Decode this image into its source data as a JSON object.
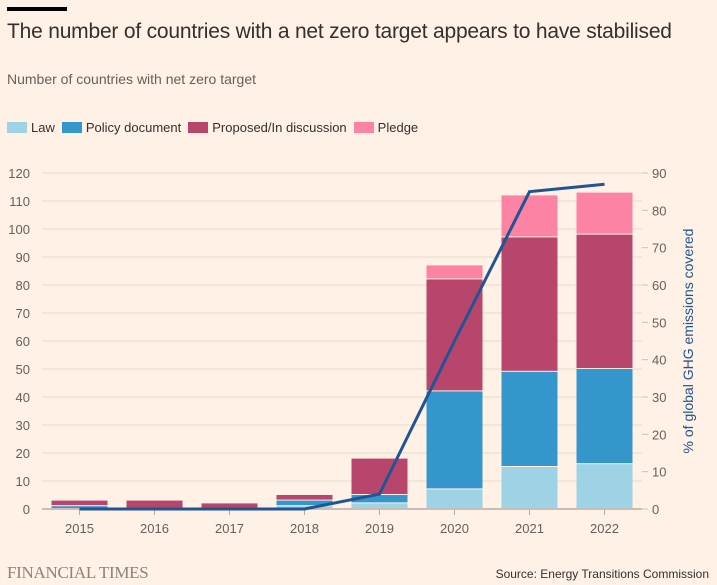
{
  "header": {
    "title": "The number of countries with a net zero target appears to have stabilised",
    "subtitle": "Number of countries with net zero target"
  },
  "footer": {
    "logo": "FINANCIAL TIMES",
    "source": "Source: Energy Transitions Commission"
  },
  "chart_data": {
    "type": "bar",
    "stacked": true,
    "title": "The number of countries with a net zero target appears to have stabilised",
    "subtitle": "Number of countries with net zero target",
    "categories": [
      "2015",
      "2016",
      "2017",
      "2018",
      "2019",
      "2020",
      "2021",
      "2022"
    ],
    "series": [
      {
        "name": "Law",
        "color": "#9dd3e5",
        "values": [
          0,
          0,
          0,
          1,
          2,
          7,
          15,
          16
        ]
      },
      {
        "name": "Policy document",
        "color": "#3596cc",
        "values": [
          1,
          0,
          0,
          2,
          3,
          35,
          34,
          34
        ]
      },
      {
        "name": "Proposed/In discussion",
        "color": "#b8456c",
        "values": [
          2,
          3,
          2,
          2,
          13,
          40,
          48,
          48
        ]
      },
      {
        "name": "Pledge",
        "color": "#fd83a5",
        "values": [
          0,
          0,
          0,
          0,
          0,
          5,
          15,
          15
        ]
      }
    ],
    "line_series": {
      "name": "% of global GHG emissions covered",
      "color": "#1f5594",
      "axis": "right",
      "values": [
        0,
        0,
        0,
        0,
        4,
        45,
        85,
        87
      ]
    },
    "yaxis_left": {
      "label": "",
      "ylim": [
        0,
        120
      ],
      "ticks": [
        "0",
        "10",
        "20",
        "30",
        "40",
        "50",
        "60",
        "70",
        "80",
        "90",
        "100",
        "110",
        "120"
      ]
    },
    "yaxis_right": {
      "label": "% of global GHG emissions covered",
      "ylim": [
        0,
        90
      ],
      "ticks": [
        "0",
        "10",
        "20",
        "30",
        "40",
        "50",
        "60",
        "70",
        "80",
        "90"
      ]
    },
    "xlabel": "",
    "legend": [
      "Law",
      "Policy document",
      "Proposed/In discussion",
      "Pledge"
    ],
    "legend_position": "top-left",
    "grid": true
  }
}
